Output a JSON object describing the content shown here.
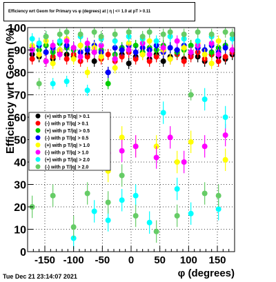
{
  "timestamp": "Tue Dec 21 23:14:07 2021",
  "chart_data": {
    "type": "scatter",
    "title": "Efficiency wrt Geom for Primary vs φ (degrees) at | η | <= 1.0 at pT > 0.11",
    "xlabel": "φ (degrees)",
    "ylabel": "Efficiency wrt Geom (%)",
    "xlim": [
      -180,
      180
    ],
    "ylim": [
      0,
      100
    ],
    "x_ticks": [
      -150,
      -100,
      -50,
      0,
      50,
      100,
      150
    ],
    "y_ticks": [
      0,
      10,
      20,
      30,
      40,
      50,
      60,
      70,
      80,
      90,
      100
    ],
    "grid": true,
    "legend_position": "left-middle",
    "series": [
      {
        "name": "(+) with p T/|q| > 0.1",
        "color": "#000000",
        "x": [
          -172,
          -160,
          -148,
          -136,
          -124,
          -112,
          -100,
          -88,
          -76,
          -64,
          -52,
          -40,
          -28,
          -16,
          -4,
          8,
          20,
          32,
          44,
          56,
          68,
          80,
          92,
          104,
          116,
          128,
          140,
          152,
          164,
          176
        ],
        "y": [
          88,
          87,
          89,
          86,
          90,
          88,
          87,
          89,
          88,
          85,
          87,
          80,
          86,
          88,
          84,
          87,
          89,
          86,
          88,
          85,
          87,
          89,
          86,
          88,
          87,
          85,
          88,
          87,
          86,
          88
        ]
      },
      {
        "name": "(-) with p T/|q| > 0.1",
        "color": "#ff0000",
        "x": [
          -172,
          -160,
          -148,
          -136,
          -124,
          -112,
          -100,
          -88,
          -76,
          -64,
          -52,
          -40,
          -28,
          -16,
          -4,
          8,
          20,
          32,
          44,
          56,
          68,
          80,
          92,
          104,
          116,
          128,
          140,
          152,
          164,
          176
        ],
        "y": [
          86,
          88,
          85,
          87,
          89,
          86,
          88,
          85,
          87,
          89,
          86,
          88,
          85,
          87,
          89,
          86,
          88,
          85,
          87,
          89,
          86,
          88,
          85,
          87,
          89,
          86,
          88,
          85,
          87,
          89
        ]
      },
      {
        "name": "(+) with p T/|q| > 0.5",
        "color": "#00cc00",
        "x": [
          -172,
          -160,
          -148,
          -136,
          -124,
          -112,
          -100,
          -88,
          -76,
          -64,
          -52,
          -40,
          -28,
          -16,
          -4,
          8,
          20,
          32,
          44,
          56,
          68,
          80,
          92,
          104,
          116,
          128,
          140,
          152,
          164,
          176
        ],
        "y": [
          91,
          90,
          92,
          89,
          93,
          91,
          90,
          92,
          91,
          89,
          90,
          75,
          88,
          91,
          90,
          92,
          89,
          91,
          90,
          92,
          91,
          89,
          90,
          92,
          91,
          90,
          89,
          91,
          92,
          90
        ]
      },
      {
        "name": "(-) with p T/|q| > 0.5",
        "color": "#0000ff",
        "x": [
          -172,
          -160,
          -148,
          -136,
          -124,
          -112,
          -100,
          -88,
          -76,
          -64,
          -52,
          -40,
          -28,
          -16,
          -4,
          8,
          20,
          32,
          44,
          56,
          68,
          80,
          92,
          104,
          116,
          128,
          140,
          152,
          164,
          176
        ],
        "y": [
          90,
          92,
          89,
          91,
          90,
          92,
          91,
          89,
          90,
          92,
          89,
          80,
          91,
          90,
          92,
          89,
          91,
          90,
          92,
          89,
          91,
          90,
          92,
          89,
          91,
          90,
          92,
          89,
          91,
          90
        ]
      },
      {
        "name": "(+) with p T/|q| > 1.0",
        "color": "#ffff00",
        "x": [
          -172,
          -160,
          -148,
          -136,
          -124,
          -112,
          -100,
          -88,
          -76,
          -64,
          -52,
          -40,
          -28,
          -16,
          -4,
          8,
          20,
          32,
          44,
          56,
          68,
          80,
          92,
          104,
          116,
          128,
          140,
          152,
          164,
          176
        ],
        "y": [
          92,
          88,
          94,
          84,
          90,
          95,
          86,
          92,
          80,
          91,
          87,
          36,
          82,
          51,
          93,
          47,
          88,
          94,
          47,
          90,
          86,
          40,
          91,
          49,
          93,
          88,
          84,
          94,
          41,
          90
        ]
      },
      {
        "name": "(-) with p T/|q| > 1.0",
        "color": "#ff00ff",
        "x": [
          -172,
          -160,
          -148,
          -136,
          -124,
          -112,
          -100,
          -88,
          -76,
          -64,
          -52,
          -40,
          -28,
          -16,
          -4,
          8,
          20,
          32,
          44,
          56,
          68,
          80,
          92,
          104,
          116,
          128,
          140,
          152,
          164,
          176
        ],
        "y": [
          90,
          93,
          85,
          92,
          88,
          94,
          91,
          87,
          93,
          89,
          92,
          44,
          86,
          45,
          90,
          47,
          93,
          88,
          42,
          91,
          51,
          94,
          40,
          89,
          92,
          47,
          93,
          88,
          52,
          90
        ]
      },
      {
        "name": "(+) with p T/|q| > 2.0",
        "color": "#00ffff",
        "x": [
          -172,
          -160,
          -148,
          -136,
          -124,
          -112,
          -100,
          -88,
          -76,
          -64,
          -52,
          -40,
          -28,
          -16,
          -4,
          8,
          20,
          32,
          44,
          56,
          68,
          80,
          92,
          104,
          116,
          128,
          140,
          152,
          164,
          176
        ],
        "y": [
          95,
          93,
          96,
          75,
          94,
          76,
          6,
          96,
          72,
          18,
          95,
          14,
          94,
          23,
          96,
          25,
          95,
          13,
          94,
          62,
          96,
          28,
          95,
          17,
          94,
          68,
          96,
          19,
          60,
          95
        ]
      },
      {
        "name": "(-) with p T/|q| > 2.0",
        "color": "#66cc66",
        "x": [
          -172,
          -160,
          -148,
          -136,
          -124,
          -112,
          -100,
          -88,
          -76,
          -64,
          -52,
          -40,
          -28,
          -16,
          -4,
          8,
          20,
          32,
          44,
          56,
          68,
          80,
          92,
          104,
          116,
          128,
          140,
          152,
          164,
          176
        ],
        "y": [
          20,
          75,
          96,
          25,
          97,
          98,
          11,
          97,
          26,
          98,
          96,
          22,
          97,
          34,
          98,
          16,
          96,
          98,
          9,
          97,
          98,
          16,
          97,
          70,
          98,
          26,
          97,
          25,
          98,
          97
        ]
      }
    ]
  }
}
